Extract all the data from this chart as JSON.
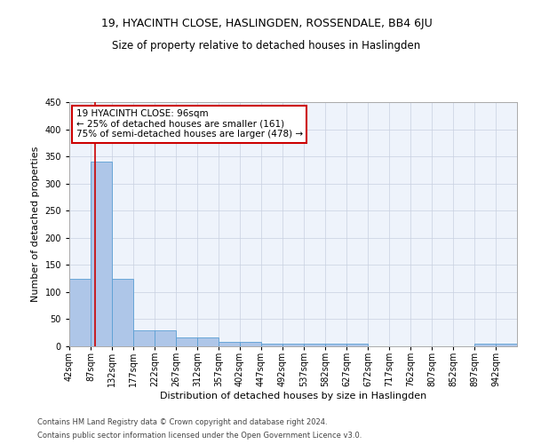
{
  "title": "19, HYACINTH CLOSE, HASLINGDEN, ROSSENDALE, BB4 6JU",
  "subtitle": "Size of property relative to detached houses in Haslingden",
  "xlabel": "Distribution of detached houses by size in Haslingden",
  "ylabel": "Number of detached properties",
  "footnote1": "Contains HM Land Registry data © Crown copyright and database right 2024.",
  "footnote2": "Contains public sector information licensed under the Open Government Licence v3.0.",
  "bar_labels": [
    "42sqm",
    "87sqm",
    "132sqm",
    "177sqm",
    "222sqm",
    "267sqm",
    "312sqm",
    "357sqm",
    "402sqm",
    "447sqm",
    "492sqm",
    "537sqm",
    "582sqm",
    "627sqm",
    "672sqm",
    "717sqm",
    "762sqm",
    "807sqm",
    "852sqm",
    "897sqm",
    "942sqm"
  ],
  "bar_values": [
    124,
    340,
    124,
    30,
    30,
    17,
    17,
    8,
    8,
    5,
    5,
    5,
    5,
    5,
    0,
    0,
    0,
    0,
    0,
    5,
    5
  ],
  "bar_color": "#aec6e8",
  "bar_edge_color": "#5a9fd4",
  "bg_color": "#eef3fb",
  "grid_color": "#c8d0e0",
  "annotation_text": "19 HYACINTH CLOSE: 96sqm\n← 25% of detached houses are smaller (161)\n75% of semi-detached houses are larger (478) →",
  "annotation_box_color": "#ffffff",
  "annotation_border_color": "#cc0000",
  "property_size": 96,
  "ylim": [
    0,
    450
  ],
  "bin_edges": [
    42,
    87,
    132,
    177,
    222,
    267,
    312,
    357,
    402,
    447,
    492,
    537,
    582,
    627,
    672,
    717,
    762,
    807,
    852,
    897,
    942,
    987
  ],
  "title_fontsize": 9,
  "subtitle_fontsize": 8.5,
  "axis_label_fontsize": 8,
  "tick_fontsize": 7,
  "annot_fontsize": 7.5,
  "footnote_fontsize": 6
}
